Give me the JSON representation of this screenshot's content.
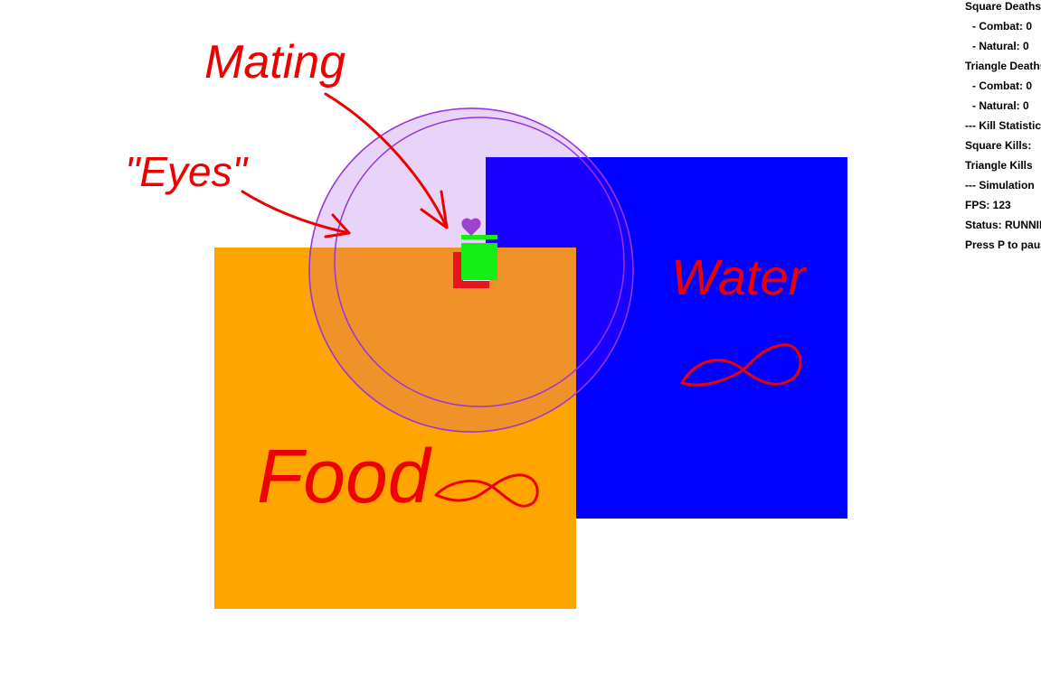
{
  "colors": {
    "background": "#ffffff",
    "food_zone": "#ffa500",
    "water_zone": "#0000ff",
    "water_zone_visible": "#1a00ff",
    "sense_circle_fill": "#e8d4f8",
    "sense_circle_stroke": "#9933dd",
    "overlap_food": "#f0922a",
    "square_agent": "#e8141e",
    "green_agent": "#14ee14",
    "annotation": "#ee0000",
    "heart": "#a040d0",
    "text": "#000000"
  },
  "icons": {
    "mating_indicator": "heart-icon",
    "infinity": "infinity-symbol"
  },
  "annotations": {
    "mating": "Mating",
    "eyes": "\"Eyes\"",
    "water": "Water",
    "food": "Food"
  },
  "stats": {
    "square_deaths": "Square Deaths",
    "square_combat": "- Combat: 0",
    "square_natural": "- Natural: 0",
    "triangle_deaths": "Triangle Deaths",
    "triangle_combat": "- Combat: 0",
    "triangle_natural": "- Natural: 0",
    "kill_header": "--- Kill Statistics",
    "square_kills": "Square Kills:",
    "triangle_kills": "Triangle Kills",
    "sim_header": "--- Simulation",
    "fps": "FPS: 123",
    "status": "Status: RUNNING",
    "pause_hint": "Press P to pause"
  }
}
